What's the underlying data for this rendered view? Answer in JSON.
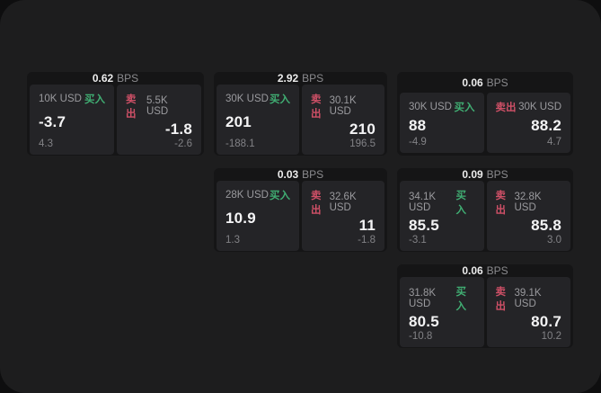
{
  "colors": {
    "surface_bg": "#1d1d1e",
    "card_bg": "#151516",
    "panel_bg": "#242427",
    "buy_green": "#40ae73",
    "sell_red": "#cf5067",
    "value_white": "#f4f4f5",
    "muted_gray": "#9a9a9e"
  },
  "labels": {
    "bps": "BPS",
    "buy": "买入",
    "sell": "卖出"
  },
  "cards": [
    {
      "bps": "0.62",
      "buy": {
        "notional": "10K USD",
        "value": "-3.7",
        "delta": "4.3"
      },
      "sell": {
        "notional": "5.5K USD",
        "value": "-1.8",
        "delta": "-2.6"
      }
    },
    {
      "bps": "2.92",
      "buy": {
        "notional": "30K USD",
        "value": "201",
        "delta": "-188.1"
      },
      "sell": {
        "notional": "30.1K USD",
        "value": "210",
        "delta": "196.5"
      }
    },
    {
      "bps": "0.06",
      "buy": {
        "notional": "30K USD",
        "value": "88",
        "delta": "-4.9"
      },
      "sell": {
        "notional": "30K USD",
        "value": "88.2",
        "delta": "4.7"
      }
    },
    {
      "bps": "0.03",
      "buy": {
        "notional": "28K USD",
        "value": "10.9",
        "delta": "1.3"
      },
      "sell": {
        "notional": "32.6K USD",
        "value": "11",
        "delta": "-1.8"
      }
    },
    {
      "bps": "0.09",
      "buy": {
        "notional": "34.1K USD",
        "value": "85.5",
        "delta": "-3.1"
      },
      "sell": {
        "notional": "32.8K USD",
        "value": "85.8",
        "delta": "3.0"
      }
    },
    {
      "bps": "0.06",
      "buy": {
        "notional": "31.8K USD",
        "value": "80.5",
        "delta": "-10.8"
      },
      "sell": {
        "notional": "39.1K USD",
        "value": "80.7",
        "delta": "10.2"
      }
    }
  ]
}
